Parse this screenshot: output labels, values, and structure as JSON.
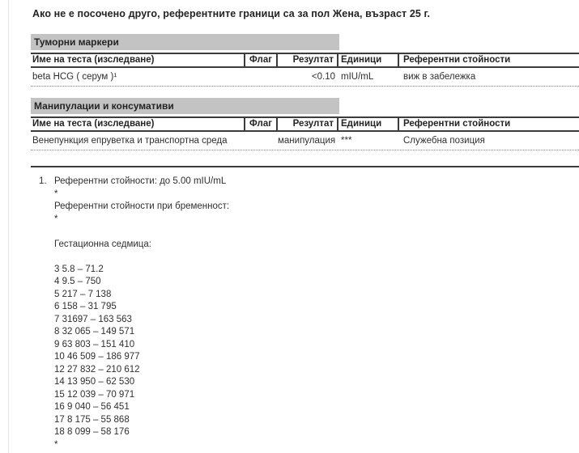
{
  "document": {
    "title": "Ако не е посочено друго, референтните граници са за пол Жена, възраст 25 г."
  },
  "table_headers": {
    "name": "Име на теста (изследване)",
    "flag": "Флаг",
    "result": "Резултат",
    "units": "Единици",
    "reference": "Референтни стойности"
  },
  "sections": [
    {
      "title": "Туморни маркери",
      "rows": [
        {
          "name": "beta HCG ( серум )¹",
          "flag": "",
          "result": "<0.10",
          "units": "mIU/mL",
          "reference": "виж в забележка"
        }
      ]
    },
    {
      "title": "Манипулации и консумативи",
      "rows": [
        {
          "name": "Венепункция епруветка и транспортна среда",
          "flag": "",
          "result": "манипулация",
          "units": "***",
          "reference": "Служебна позиция"
        }
      ]
    }
  ],
  "footnote": {
    "number": "1.",
    "text": "Референтни стойности: до 5.00 mIU/mL\n*\nРеферентни стойности при бременност:\n*\n\nГестационна седмица:\n\n3 5.8 – 71.2\n4 9.5 – 750\n5 217 – 7 138\n6 158 – 31 795\n7 31697 – 163 563\n8 32 065 – 149 571\n9 63 803 – 151 410\n10 46 509 – 186 977\n12 27 832 – 210 612\n14 13 950 – 62 530\n15 12 039 – 70 971\n16 9 040 – 56 451\n17 8 175 – 55 868\n18 8 099 – 58 176\n*"
  },
  "colors": {
    "section_bar": "#c3c3c3",
    "table_border": "#3c3c3c",
    "dotted_separator": "#8a8a8a",
    "text": "#2f2f2f",
    "left_rule": "#e3e3e3"
  }
}
